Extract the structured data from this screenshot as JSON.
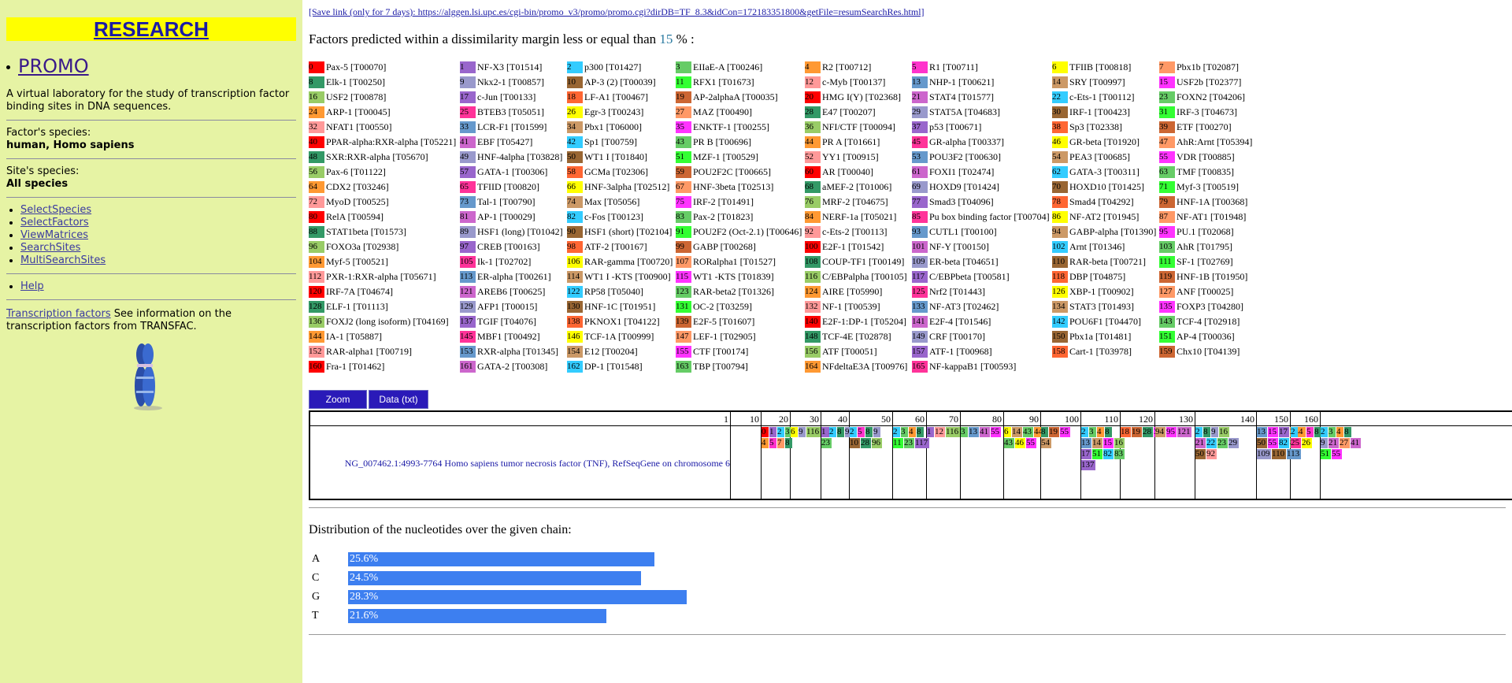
{
  "sidebar": {
    "research": "RESEARCH",
    "promo": "PROMO",
    "description": "A virtual laboratory for the study of transcription factor binding sites in DNA sequences.",
    "factor_species_label": "Factor's species:",
    "factor_species_value": "human, Homo sapiens",
    "site_species_label": "Site's species:",
    "site_species_value": "All species",
    "links": [
      "SelectSpecies",
      "SelectFactors",
      "ViewMatrices",
      "SearchSites",
      "MultiSearchSites"
    ],
    "help": "Help",
    "tf_link": "Transcription factors",
    "tf_text": " See information on the transcription factors from TRANSFAC."
  },
  "main": {
    "save_link": "[Save link (only for 7 days): https://alggen.lsi.upc.es/cgi-bin/promo_v3/promo/promo.cgi?dirDB=TF_8.3&idCon=172183351800&getFile=resumSearchRes.html]",
    "pred_prefix": "Factors predicted within a dissimilarity margin less or equal than ",
    "pred_value": "15",
    "pred_suffix": " % :",
    "zoom": "Zoom",
    "data_txt": "Data (txt)",
    "sequence_label": "NG_007462.1:4993-7764 Homo sapiens tumor necrosis factor (TNF), RefSeqGene on chromosome 6",
    "ruler": [
      "1",
      "10",
      "20",
      "30",
      "40",
      "50",
      "60",
      "70",
      "80",
      "90",
      "100",
      "110",
      "120",
      "130",
      "140",
      "150",
      "160"
    ],
    "dist_title": "Distribution of the nucleotides over the given chain:"
  },
  "nucleotides": [
    {
      "base": "A",
      "label": "25.6%",
      "value": 25.6
    },
    {
      "base": "C",
      "label": "24.5%",
      "value": 24.5
    },
    {
      "base": "G",
      "label": "28.3%",
      "value": 28.3
    },
    {
      "base": "T",
      "label": "21.6%",
      "value": 21.6
    }
  ],
  "factors": [
    [
      "0",
      "Pax-5 [T00070]",
      "#ff0000"
    ],
    [
      "1",
      "NF-X3 [T01514]",
      "#9966cc"
    ],
    [
      "2",
      "p300 [T01427]",
      "#33ccff"
    ],
    [
      "3",
      "EIIaE-A [T00246]",
      "#66cc66"
    ],
    [
      "4",
      "R2 [T00712]",
      "#ff9933"
    ],
    [
      "5",
      "R1 [T00711]",
      "#ff33cc"
    ],
    [
      "6",
      "TFIIB [T00818]",
      "#ffff00"
    ],
    [
      "7",
      "Pbx1b [T02087]",
      "#ff9966"
    ],
    [
      "8",
      "Elk-1 [T00250]",
      "#339966"
    ],
    [
      "9",
      "Nkx2-1 [T00857]",
      "#9999cc"
    ],
    [
      "10",
      "AP-3 (2) [T00039]",
      "#996633"
    ],
    [
      "11",
      "RFX1 [T01673]",
      "#33ff33"
    ],
    [
      "12",
      "c-Myb [T00137]",
      "#ff9999"
    ],
    [
      "13",
      "NHP-1 [T00621]",
      "#6699cc"
    ],
    [
      "14",
      "SRY [T00997]",
      "#cc9966"
    ],
    [
      "15",
      "USF2b [T02377]",
      "#ff33ff"
    ],
    [
      "16",
      "USF2 [T00878]",
      "#99cc66"
    ],
    [
      "17",
      "c-Jun [T00133]",
      "#9966cc"
    ],
    [
      "18",
      "LF-A1 [T00467]",
      "#ff6633"
    ],
    [
      "19",
      "AP-2alphaA [T00035]",
      "#cc6633"
    ],
    [
      "20",
      "HMG I(Y) [T02368]",
      "#ff0000"
    ],
    [
      "21",
      "STAT4 [T01577]",
      "#cc66cc"
    ],
    [
      "22",
      "c-Ets-1 [T00112]",
      "#33ccff"
    ],
    [
      "23",
      "FOXN2 [T04206]",
      "#66cc66"
    ],
    [
      "24",
      "ARP-1 [T00045]",
      "#ff9933"
    ],
    [
      "25",
      "BTEB3 [T05051]",
      "#ff3399"
    ],
    [
      "26",
      "Egr-3 [T00243]",
      "#ffff00"
    ],
    [
      "27",
      "MAZ [T00490]",
      "#ff9966"
    ],
    [
      "28",
      "E47 [T00207]",
      "#339966"
    ],
    [
      "29",
      "STAT5A [T04683]",
      "#9999cc"
    ],
    [
      "30",
      "IRF-1 [T00423]",
      "#996633"
    ],
    [
      "31",
      "IRF-3 [T04673]",
      "#33ff33"
    ],
    [
      "32",
      "NFAT1 [T00550]",
      "#ff9999"
    ],
    [
      "33",
      "LCR-F1 [T01599]",
      "#6699cc"
    ],
    [
      "34",
      "Pbx1 [T06000]",
      "#cc9966"
    ],
    [
      "35",
      "ENKTF-1 [T00255]",
      "#ff33ff"
    ],
    [
      "36",
      "NFI/CTF [T00094]",
      "#99cc66"
    ],
    [
      "37",
      "p53 [T00671]",
      "#9966cc"
    ],
    [
      "38",
      "Sp3 [T02338]",
      "#ff6633"
    ],
    [
      "39",
      "ETF [T00270]",
      "#cc6633"
    ],
    [
      "40",
      "PPAR-alpha:RXR-alpha [T05221]",
      "#ff0000"
    ],
    [
      "41",
      "EBF [T05427]",
      "#cc66cc"
    ],
    [
      "42",
      "Sp1 [T00759]",
      "#33ccff"
    ],
    [
      "43",
      "PR B [T00696]",
      "#66cc66"
    ],
    [
      "44",
      "PR A [T01661]",
      "#ff9933"
    ],
    [
      "45",
      "GR-alpha [T00337]",
      "#ff3399"
    ],
    [
      "46",
      "GR-beta [T01920]",
      "#ffff00"
    ],
    [
      "47",
      "AhR:Arnt [T05394]",
      "#ff9966"
    ],
    [
      "48",
      "SXR:RXR-alpha [T05670]",
      "#339966"
    ],
    [
      "49",
      "HNF-4alpha [T03828]",
      "#9999cc"
    ],
    [
      "50",
      "WT1 I [T01840]",
      "#996633"
    ],
    [
      "51",
      "MZF-1 [T00529]",
      "#33ff33"
    ],
    [
      "52",
      "YY1 [T00915]",
      "#ff9999"
    ],
    [
      "53",
      "POU3F2 [T00630]",
      "#6699cc"
    ],
    [
      "54",
      "PEA3 [T00685]",
      "#cc9966"
    ],
    [
      "55",
      "VDR [T00885]",
      "#ff33ff"
    ],
    [
      "56",
      "Pax-6 [T01122]",
      "#99cc66"
    ],
    [
      "57",
      "GATA-1 [T00306]",
      "#9966cc"
    ],
    [
      "58",
      "GCMa [T02306]",
      "#ff6633"
    ],
    [
      "59",
      "POU2F2C [T00665]",
      "#cc6633"
    ],
    [
      "60",
      "AR [T00040]",
      "#ff0000"
    ],
    [
      "61",
      "FOXI1 [T02474]",
      "#cc66cc"
    ],
    [
      "62",
      "GATA-3 [T00311]",
      "#33ccff"
    ],
    [
      "63",
      "TMF [T00835]",
      "#66cc66"
    ],
    [
      "64",
      "CDX2 [T03246]",
      "#ff9933"
    ],
    [
      "65",
      "TFIID [T00820]",
      "#ff3399"
    ],
    [
      "66",
      "HNF-3alpha [T02512]",
      "#ffff00"
    ],
    [
      "67",
      "HNF-3beta [T02513]",
      "#ff9966"
    ],
    [
      "68",
      "aMEF-2 [T01006]",
      "#339966"
    ],
    [
      "69",
      "HOXD9 [T01424]",
      "#9999cc"
    ],
    [
      "70",
      "HOXD10 [T01425]",
      "#996633"
    ],
    [
      "71",
      "Myf-3 [T00519]",
      "#33ff33"
    ],
    [
      "72",
      "MyoD [T00525]",
      "#ff9999"
    ],
    [
      "73",
      "Tal-1 [T00790]",
      "#6699cc"
    ],
    [
      "74",
      "Max [T05056]",
      "#cc9966"
    ],
    [
      "75",
      "IRF-2 [T01491]",
      "#ff33ff"
    ],
    [
      "76",
      "MRF-2 [T04675]",
      "#99cc66"
    ],
    [
      "77",
      "Smad3 [T04096]",
      "#9966cc"
    ],
    [
      "78",
      "Smad4 [T04292]",
      "#ff6633"
    ],
    [
      "79",
      "HNF-1A [T00368]",
      "#cc6633"
    ],
    [
      "80",
      "RelA [T00594]",
      "#ff0000"
    ],
    [
      "81",
      "AP-1 [T00029]",
      "#cc66cc"
    ],
    [
      "82",
      "c-Fos [T00123]",
      "#33ccff"
    ],
    [
      "83",
      "Pax-2 [T01823]",
      "#66cc66"
    ],
    [
      "84",
      "NERF-1a [T05021]",
      "#ff9933"
    ],
    [
      "85",
      "Pu box binding factor [T00704]",
      "#ff3399"
    ],
    [
      "86",
      "NF-AT2 [T01945]",
      "#ffff00"
    ],
    [
      "87",
      "NF-AT1 [T01948]",
      "#ff9966"
    ],
    [
      "88",
      "STAT1beta [T01573]",
      "#339966"
    ],
    [
      "89",
      "HSF1 (long) [T01042]",
      "#9999cc"
    ],
    [
      "90",
      "HSF1 (short) [T02104]",
      "#996633"
    ],
    [
      "91",
      "POU2F2 (Oct-2.1) [T00646]",
      "#33ff33"
    ],
    [
      "92",
      "c-Ets-2 [T00113]",
      "#ff9999"
    ],
    [
      "93",
      "CUTL1 [T00100]",
      "#6699cc"
    ],
    [
      "94",
      "GABP-alpha [T01390]",
      "#cc9966"
    ],
    [
      "95",
      "PU.1 [T02068]",
      "#ff33ff"
    ],
    [
      "96",
      "FOXO3a [T02938]",
      "#99cc66"
    ],
    [
      "97",
      "CREB [T00163]",
      "#9966cc"
    ],
    [
      "98",
      "ATF-2 [T00167]",
      "#ff6633"
    ],
    [
      "99",
      "GABP [T00268]",
      "#cc6633"
    ],
    [
      "100",
      "E2F-1 [T01542]",
      "#ff0000"
    ],
    [
      "101",
      "NF-Y [T00150]",
      "#cc66cc"
    ],
    [
      "102",
      "Arnt [T01346]",
      "#33ccff"
    ],
    [
      "103",
      "AhR [T01795]",
      "#66cc66"
    ],
    [
      "104",
      "Myf-5 [T00521]",
      "#ff9933"
    ],
    [
      "105",
      "Ik-1 [T02702]",
      "#ff3399"
    ],
    [
      "106",
      "RAR-gamma [T00720]",
      "#ffff00"
    ],
    [
      "107",
      "RORalpha1 [T01527]",
      "#ff9966"
    ],
    [
      "108",
      "COUP-TF1 [T00149]",
      "#339966"
    ],
    [
      "109",
      "ER-beta [T04651]",
      "#9999cc"
    ],
    [
      "110",
      "RAR-beta [T00721]",
      "#996633"
    ],
    [
      "111",
      "SF-1 [T02769]",
      "#33ff33"
    ],
    [
      "112",
      "PXR-1:RXR-alpha [T05671]",
      "#ff9999"
    ],
    [
      "113",
      "ER-alpha [T00261]",
      "#6699cc"
    ],
    [
      "114",
      "WT1 I -KTS [T00900]",
      "#cc9966"
    ],
    [
      "115",
      "WT1 -KTS [T01839]",
      "#ff33ff"
    ],
    [
      "116",
      "C/EBPalpha [T00105]",
      "#99cc66"
    ],
    [
      "117",
      "C/EBPbeta [T00581]",
      "#9966cc"
    ],
    [
      "118",
      "DBP [T04875]",
      "#ff6633"
    ],
    [
      "119",
      "HNF-1B [T01950]",
      "#cc6633"
    ],
    [
      "120",
      "IRF-7A [T04674]",
      "#ff0000"
    ],
    [
      "121",
      "AREB6 [T00625]",
      "#cc66cc"
    ],
    [
      "122",
      "RP58 [T05040]",
      "#33ccff"
    ],
    [
      "123",
      "RAR-beta2 [T01326]",
      "#66cc66"
    ],
    [
      "124",
      "AIRE [T05990]",
      "#ff9933"
    ],
    [
      "125",
      "Nrf2 [T01443]",
      "#ff3399"
    ],
    [
      "126",
      "XBP-1 [T00902]",
      "#ffff00"
    ],
    [
      "127",
      "ANF [T00025]",
      "#ff9966"
    ],
    [
      "128",
      "ELF-1 [T01113]",
      "#339966"
    ],
    [
      "129",
      "AFP1 [T00015]",
      "#9999cc"
    ],
    [
      "130",
      "HNF-1C [T01951]",
      "#996633"
    ],
    [
      "131",
      "OC-2 [T03259]",
      "#33ff33"
    ],
    [
      "132",
      "NF-1 [T00539]",
      "#ff9999"
    ],
    [
      "133",
      "NF-AT3 [T02462]",
      "#6699cc"
    ],
    [
      "134",
      "STAT3 [T01493]",
      "#cc9966"
    ],
    [
      "135",
      "FOXP3 [T04280]",
      "#ff33ff"
    ],
    [
      "136",
      "FOXJ2 (long isoform) [T04169]",
      "#99cc66"
    ],
    [
      "137",
      "TGIF [T04076]",
      "#9966cc"
    ],
    [
      "138",
      "PKNOX1 [T04122]",
      "#ff6633"
    ],
    [
      "139",
      "E2F-5 [T01607]",
      "#cc6633"
    ],
    [
      "140",
      "E2F-1:DP-1 [T05204]",
      "#ff0000"
    ],
    [
      "141",
      "E2F-4 [T01546]",
      "#cc66cc"
    ],
    [
      "142",
      "POU6F1 [T04470]",
      "#33ccff"
    ],
    [
      "143",
      "TCF-4 [T02918]",
      "#66cc66"
    ],
    [
      "144",
      "IA-1 [T05887]",
      "#ff9933"
    ],
    [
      "145",
      "MBF1 [T00492]",
      "#ff3399"
    ],
    [
      "146",
      "TCF-1A [T00999]",
      "#ffff00"
    ],
    [
      "147",
      "LEF-1 [T02905]",
      "#ff9966"
    ],
    [
      "148",
      "TCF-4E [T02878]",
      "#339966"
    ],
    [
      "149",
      "CRF [T00170]",
      "#9999cc"
    ],
    [
      "150",
      "Pbx1a [T01481]",
      "#996633"
    ],
    [
      "151",
      "AP-4 [T00036]",
      "#33ff33"
    ],
    [
      "152",
      "RAR-alpha1 [T00719]",
      "#ff9999"
    ],
    [
      "153",
      "RXR-alpha [T01345]",
      "#6699cc"
    ],
    [
      "154",
      "E12 [T00204]",
      "#cc9966"
    ],
    [
      "155",
      "CTF [T00174]",
      "#ff33ff"
    ],
    [
      "156",
      "ATF [T00051]",
      "#99cc66"
    ],
    [
      "157",
      "ATF-1 [T00968]",
      "#9966cc"
    ],
    [
      "158",
      "Cart-1 [T03978]",
      "#ff6633"
    ],
    [
      "159",
      "Chx10 [T04139]",
      "#cc6633"
    ],
    [
      "160",
      "Fra-1 [T01462]",
      "#ff0000"
    ],
    [
      "161",
      "GATA-2 [T00308]",
      "#cc66cc"
    ],
    [
      "162",
      "DP-1 [T01548]",
      "#33ccff"
    ],
    [
      "163",
      "TBP [T00794]",
      "#66cc66"
    ],
    [
      "164",
      "NFdeltaE3A [T00976]",
      "#ff9933"
    ],
    [
      "165",
      "NF-kappaB1 [T00593]",
      "#ff3399"
    ]
  ],
  "sites": [
    [
      0,
      [
        [
          "0",
          "1",
          "2",
          "3"
        ],
        [
          "4",
          "5",
          "7",
          "8"
        ]
      ]
    ],
    [
      1,
      [
        [
          "6",
          "9",
          "116",
          "117"
        ]
      ]
    ],
    [
      2,
      [
        [
          "1",
          "2",
          "8",
          "9"
        ],
        [
          "23"
        ]
      ]
    ],
    [
      3,
      [
        [
          "2",
          "5",
          "8",
          "9"
        ],
        [
          "10",
          "28",
          "96"
        ]
      ]
    ],
    [
      4,
      [
        [
          "2",
          "3",
          "4",
          "8"
        ],
        [
          "11",
          "23",
          "117"
        ]
      ]
    ],
    [
      5,
      [
        [
          "1",
          "12",
          "116"
        ]
      ]
    ],
    [
      6,
      [
        [
          "3",
          "13",
          "41",
          "55"
        ]
      ]
    ],
    [
      7,
      [
        [
          "6",
          "14",
          "43",
          "44"
        ],
        [
          "43",
          "46",
          "55"
        ]
      ]
    ],
    [
      8,
      [
        [
          "8",
          "19",
          "55"
        ],
        [
          "54"
        ]
      ]
    ],
    [
      9,
      [
        [
          "2",
          "3",
          "4",
          "8"
        ],
        [
          "13",
          "14",
          "15",
          "16"
        ],
        [
          "17",
          "51",
          "82",
          "83"
        ],
        [
          "137"
        ]
      ]
    ],
    [
      10,
      [
        [
          "18",
          "19",
          "28",
          "35"
        ]
      ]
    ],
    [
      11,
      [
        [
          "94",
          "95",
          "121"
        ]
      ]
    ],
    [
      12,
      [
        [
          "2",
          "8",
          "9",
          "16"
        ],
        [
          "21",
          "22",
          "23",
          "29"
        ],
        [
          "50",
          "92"
        ]
      ]
    ],
    [
      13,
      [
        [
          "13",
          "15",
          "17",
          "24"
        ],
        [
          "50",
          "55",
          "82",
          "83"
        ],
        [
          "109",
          "110",
          "113"
        ]
      ]
    ],
    [
      14,
      [
        [
          "2",
          "4",
          "5",
          "8"
        ],
        [
          "25",
          "26"
        ]
      ]
    ],
    [
      15,
      [
        [
          "2",
          "3",
          "4",
          "8"
        ],
        [
          "9",
          "21",
          "27",
          "41"
        ],
        [
          "51",
          "55"
        ]
      ]
    ],
    [
      16,
      [
        [
          "2",
          "4",
          "8"
        ],
        [
          "21",
          "22",
          "28"
        ],
        [
          "30",
          "31",
          "32"
        ],
        [
          "87",
          "88"
        ]
      ]
    ]
  ]
}
